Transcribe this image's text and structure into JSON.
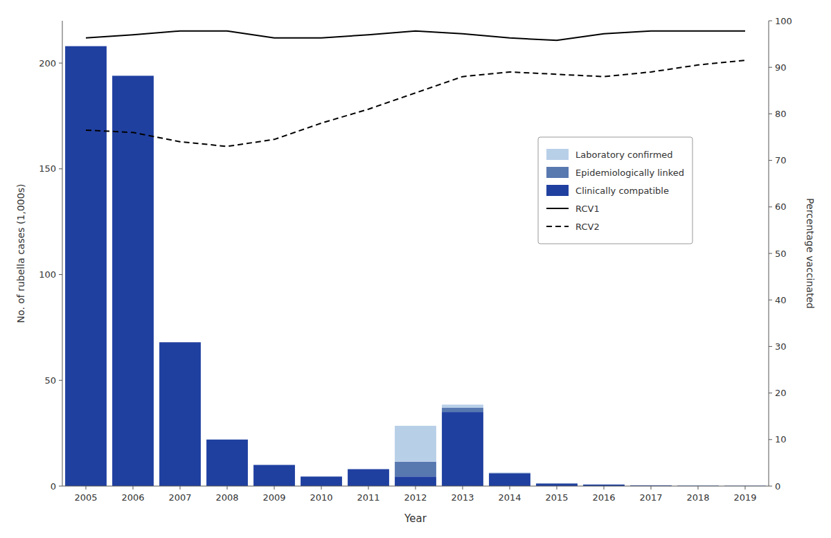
{
  "chart_data": {
    "type": "bar",
    "stacked": true,
    "xlabel": "Year",
    "ylabel": "No. of rubella cases (1,000s)",
    "y2label": "Percentage vaccinated",
    "x": [
      2005,
      2006,
      2007,
      2008,
      2009,
      2010,
      2011,
      2012,
      2013,
      2014,
      2015,
      2016,
      2017,
      2018,
      2019
    ],
    "xlim": [
      2004.5,
      2019.5
    ],
    "xticks": [
      2005,
      2006,
      2007,
      2008,
      2009,
      2010,
      2011,
      2012,
      2013,
      2014,
      2015,
      2016,
      2017,
      2018,
      2019
    ],
    "ylim": [
      0,
      220
    ],
    "yticks": [
      0,
      50,
      100,
      150,
      200
    ],
    "y2lim": [
      0,
      100
    ],
    "y2ticks": [
      0,
      10,
      20,
      30,
      40,
      50,
      60,
      70,
      80,
      90,
      100
    ],
    "grid": false,
    "legend": "right",
    "series": [
      {
        "name": "Clinically compatible",
        "type": "bar",
        "color": "#2040a0",
        "values": [
          208,
          194,
          68,
          22,
          10,
          4.5,
          8,
          4.5,
          35,
          6,
          1.2,
          0.7,
          0.3,
          0.2,
          0.15
        ]
      },
      {
        "name": "Epidemiologically linked",
        "type": "bar",
        "color": "#5878b0",
        "values": [
          0,
          0,
          0,
          0,
          0,
          0,
          0,
          7,
          2.0,
          0.2,
          0.1,
          0.05,
          0.05,
          0.05,
          0.05
        ]
      },
      {
        "name": "Laboratory confirmed",
        "type": "bar",
        "color": "#b8cfe8",
        "values": [
          0,
          0,
          0,
          0,
          0,
          0,
          0,
          17,
          1.5,
          0.2,
          0.1,
          0.05,
          0.05,
          0.05,
          0.05
        ]
      },
      {
        "name": "RCV1",
        "type": "line",
        "axis": "y2",
        "color": "#000000",
        "line_style": "solid",
        "values": [
          96.3,
          97.0,
          97.8,
          97.8,
          96.3,
          96.3,
          97.0,
          97.8,
          97.2,
          96.3,
          95.8,
          97.2,
          97.8,
          97.8,
          97.8
        ]
      },
      {
        "name": "RCV2",
        "type": "line",
        "axis": "y2",
        "color": "#000000",
        "line_style": "dashed",
        "values": [
          76.5,
          76.0,
          74.0,
          73.0,
          74.5,
          78.0,
          81.0,
          84.5,
          88.0,
          89.0,
          88.5,
          88.0,
          89.0,
          90.5,
          91.5
        ]
      }
    ]
  }
}
